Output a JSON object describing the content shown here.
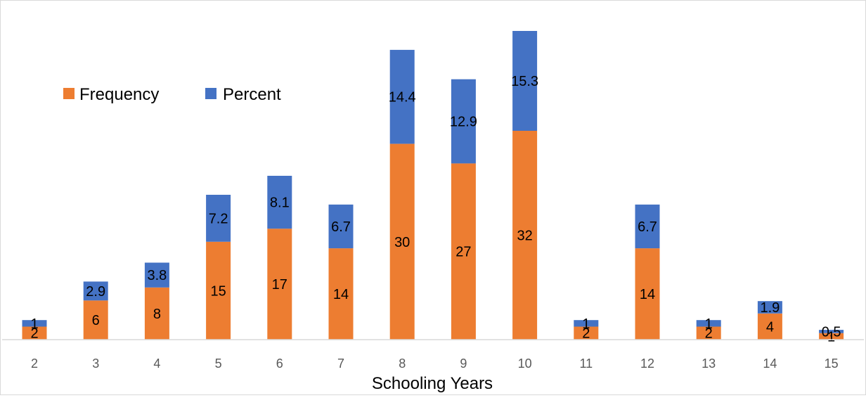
{
  "chart_data": {
    "type": "bar",
    "stacked": true,
    "categories": [
      "2",
      "3",
      "4",
      "5",
      "6",
      "7",
      "8",
      "9",
      "10",
      "11",
      "12",
      "13",
      "14",
      "15"
    ],
    "series": [
      {
        "name": "Frequency",
        "color": "#ED7D31",
        "values": [
          2,
          6,
          8,
          15,
          17,
          14,
          30,
          27,
          32,
          2,
          14,
          2,
          4,
          1
        ],
        "labels": [
          "2",
          "6",
          "8",
          "15",
          "17",
          "14",
          "30",
          "27",
          "32",
          "2",
          "14",
          "2",
          "4",
          "1"
        ]
      },
      {
        "name": "Percent",
        "color": "#4472C4",
        "values": [
          1,
          2.9,
          3.8,
          7.2,
          8.1,
          6.7,
          14.4,
          12.9,
          15.3,
          1,
          6.7,
          1,
          1.9,
          0.5
        ],
        "labels": [
          "1",
          "2.9",
          "3.8",
          "7.2",
          "8.1",
          "6.7",
          "14.4",
          "12.9",
          "15.3",
          "1",
          "6.7",
          "1",
          "1.9",
          "0.5"
        ]
      }
    ],
    "xlabel": "Schooling Years",
    "ylabel": "",
    "ylim": [
      0,
      47.3
    ],
    "grid": false,
    "legend": "top-left"
  }
}
